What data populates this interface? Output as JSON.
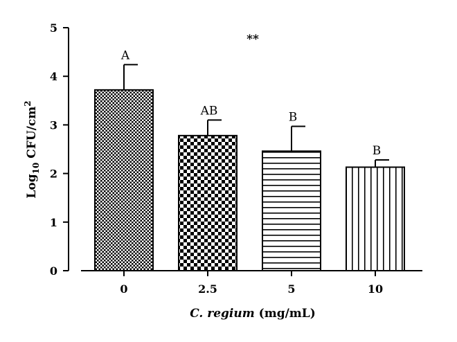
{
  "chart_data": {
    "type": "bar",
    "categories": [
      "0",
      "2.5",
      "5",
      "10"
    ],
    "values": [
      3.72,
      2.78,
      2.46,
      2.13
    ],
    "error_upper": [
      4.24,
      3.1,
      2.97,
      2.28
    ],
    "letters": [
      "A",
      "AB",
      "B",
      "B"
    ],
    "patterns": [
      "fine-checker",
      "checker",
      "horizontal-lines",
      "vertical-lines"
    ],
    "annotation": "**",
    "ylabel": {
      "prefix": "Log",
      "subscript": "10",
      "unit": " CFU/cm",
      "superscript": "2"
    },
    "xlabel": {
      "italic": "C. regium",
      "rest": " (mg/mL)"
    },
    "ylim": [
      0,
      5
    ],
    "yticks": [
      0,
      1,
      2,
      3,
      4,
      5
    ],
    "grid": false,
    "colors": {
      "bar_fill": "#000000",
      "background": "#ffffff"
    }
  }
}
